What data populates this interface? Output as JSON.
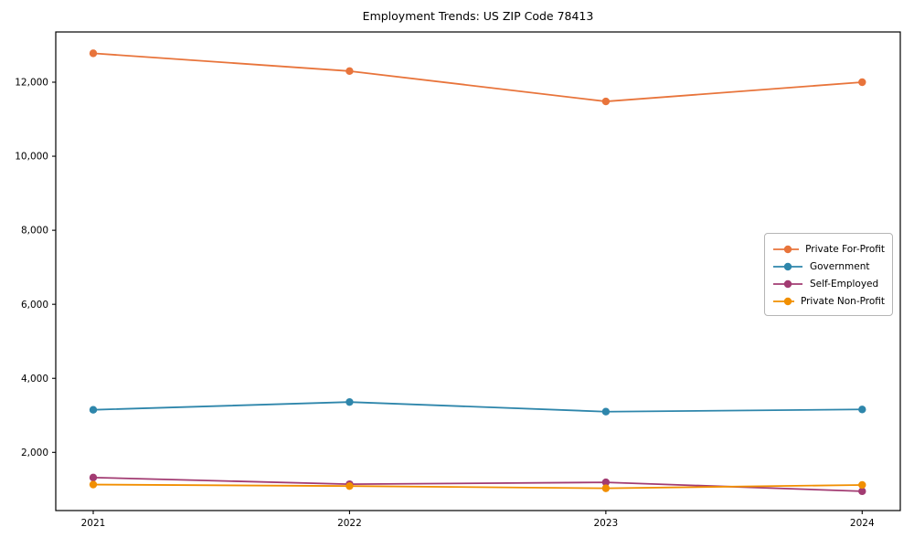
{
  "chart_data": {
    "type": "line",
    "title": "Employment Trends: US ZIP Code 78413",
    "categories": [
      "2021",
      "2022",
      "2023",
      "2024"
    ],
    "xlabel": "",
    "ylabel": "",
    "series": [
      {
        "name": "Private For-Profit",
        "color": "#E8743B",
        "values": [
          12780,
          12300,
          11480,
          12000
        ]
      },
      {
        "name": "Government",
        "color": "#2E86AB",
        "values": [
          3150,
          3360,
          3100,
          3160
        ]
      },
      {
        "name": "Self-Employed",
        "color": "#A23B72",
        "values": [
          1320,
          1140,
          1190,
          950
        ]
      },
      {
        "name": "Private Non-Profit",
        "color": "#F18F01",
        "values": [
          1130,
          1090,
          1030,
          1120
        ]
      }
    ],
    "yticks": [
      2000,
      4000,
      6000,
      8000,
      10000,
      12000
    ],
    "ytick_labels": [
      "2,000",
      "4,000",
      "6,000",
      "8,000",
      "10,000",
      "12,000"
    ],
    "ylim": [
      430,
      13360
    ],
    "grid": false,
    "legend_position": "center-right",
    "axis_color": "#000000",
    "background_color": "#ffffff"
  }
}
